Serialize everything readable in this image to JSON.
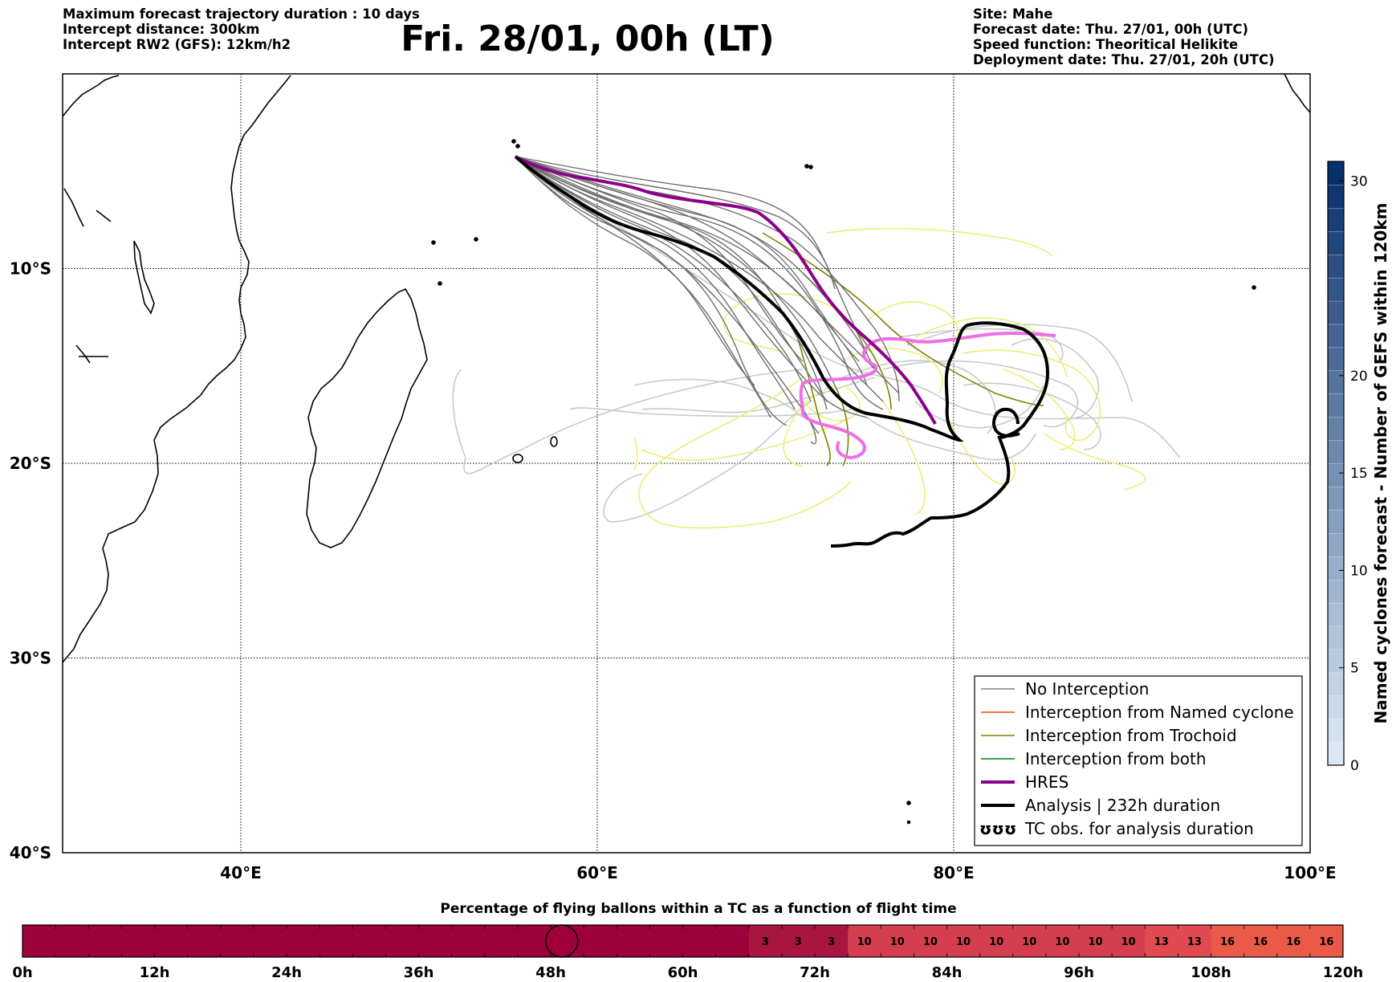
{
  "header": {
    "left": [
      "Maximum forecast trajectory duration : 10 days",
      "Intercept distance: 300km",
      "Intercept RW2 (GFS):  12km/h2"
    ],
    "title": "Fri. 28/01, 00h (LT)",
    "right": [
      "Site: Mahe",
      "Forecast date: Thu. 27/01, 00h (UTC)",
      "Speed function: Theoritical Helikite",
      "Deployment date: Thu. 27/01, 20h (UTC)"
    ]
  },
  "map": {
    "lon_range": [
      30,
      100
    ],
    "lat_range": [
      -40,
      0
    ],
    "lon_ticks": [
      "40°E",
      "60°E",
      "80°E",
      "100°E"
    ],
    "lat_ticks": [
      "10°S",
      "20°S",
      "30°S",
      "40°S"
    ],
    "gridlines": true,
    "launch_site": "Mahe",
    "launch_point": {
      "lon": 55.5,
      "lat": -4.6
    }
  },
  "legend": {
    "position": "bottom-right",
    "items": [
      {
        "label": "No Interception",
        "color": "#808080",
        "style": "thin"
      },
      {
        "label": "Interception from Named cyclone",
        "color": "#ff4500",
        "style": "thin"
      },
      {
        "label": "Interception from Trochoid",
        "color": "#808000",
        "style": "thin"
      },
      {
        "label": "Interception from both",
        "color": "#008000",
        "style": "thin"
      },
      {
        "label": "HRES",
        "color": "#8b008b",
        "style": "thick"
      },
      {
        "label": "Analysis | 232h duration",
        "color": "#000000",
        "style": "thick"
      },
      {
        "label": "TC obs. for analysis duration",
        "color": "#000000",
        "style": "glyph",
        "glyph": "ʊʊʊ"
      }
    ]
  },
  "colorbar_right": {
    "label": "Named cyclones forecast - Number of GEFS within 120km",
    "ticks": [
      "0",
      "5",
      "10",
      "15",
      "20",
      "30"
    ],
    "tick_values": [
      0,
      5,
      10,
      15,
      20,
      30
    ],
    "range": [
      0,
      31
    ],
    "color_low": "#dbe9f6",
    "color_high": "#08306b"
  },
  "bottom_bar": {
    "title": "Percentage of flying ballons within a TC as a function of flight time",
    "ticks": [
      "0h",
      "12h",
      "24h",
      "36h",
      "48h",
      "60h",
      "72h",
      "84h",
      "96h",
      "108h",
      "120h"
    ],
    "hours_range": [
      0,
      120
    ],
    "current_marker_hour": 49,
    "segments": [
      {
        "from": 0,
        "to": 66,
        "value": null,
        "color": "#9e003a"
      },
      {
        "from": 66,
        "to": 69,
        "value": "3",
        "color": "#a8163f"
      },
      {
        "from": 69,
        "to": 72,
        "value": "3",
        "color": "#a8163f"
      },
      {
        "from": 72,
        "to": 75,
        "value": "3",
        "color": "#a8163f"
      },
      {
        "from": 75,
        "to": 78,
        "value": "10",
        "color": "#d53e4f"
      },
      {
        "from": 78,
        "to": 81,
        "value": "10",
        "color": "#d53e4f"
      },
      {
        "from": 81,
        "to": 84,
        "value": "10",
        "color": "#d53e4f"
      },
      {
        "from": 84,
        "to": 87,
        "value": "10",
        "color": "#d53e4f"
      },
      {
        "from": 87,
        "to": 90,
        "value": "10",
        "color": "#d53e4f"
      },
      {
        "from": 90,
        "to": 93,
        "value": "10",
        "color": "#d53e4f"
      },
      {
        "from": 93,
        "to": 96,
        "value": "10",
        "color": "#d53e4f"
      },
      {
        "from": 96,
        "to": 99,
        "value": "10",
        "color": "#d53e4f"
      },
      {
        "from": 99,
        "to": 102,
        "value": "10",
        "color": "#d53e4f"
      },
      {
        "from": 102,
        "to": 105,
        "value": "13",
        "color": "#e04a50"
      },
      {
        "from": 105,
        "to": 108,
        "value": "13",
        "color": "#e04a50"
      },
      {
        "from": 108,
        "to": 111,
        "value": "16",
        "color": "#ea5a48"
      },
      {
        "from": 111,
        "to": 114,
        "value": "16",
        "color": "#ea5a48"
      },
      {
        "from": 114,
        "to": 117,
        "value": "16",
        "color": "#ea5a48"
      },
      {
        "from": 117,
        "to": 120,
        "value": "16",
        "color": "#ea5a48"
      }
    ]
  }
}
